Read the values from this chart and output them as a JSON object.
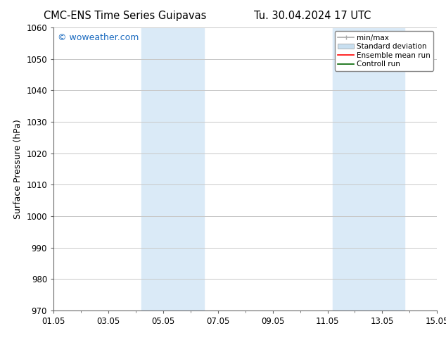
{
  "title_left": "CMC-ENS Time Series Guipavas",
  "title_right": "Tu. 30.04.2024 17 UTC",
  "ylabel": "Surface Pressure (hPa)",
  "ylim": [
    970,
    1060
  ],
  "yticks": [
    970,
    980,
    990,
    1000,
    1010,
    1020,
    1030,
    1040,
    1050,
    1060
  ],
  "xlim_start": 0.0,
  "xlim_end": 14.0,
  "xtick_labels": [
    "01.05",
    "03.05",
    "05.05",
    "07.05",
    "09.05",
    "11.05",
    "13.05",
    "15.05"
  ],
  "xtick_positions": [
    0,
    2,
    4,
    6,
    8,
    10,
    12,
    14
  ],
  "shaded_bands": [
    {
      "x_start": 3.0,
      "x_end": 5.0,
      "color": "#daeaf7"
    },
    {
      "x_start": 4.5,
      "x_end": 5.5,
      "color": "#c5dcf0"
    },
    {
      "x_start": 10.0,
      "x_end": 12.0,
      "color": "#daeaf7"
    },
    {
      "x_start": 11.5,
      "x_end": 12.5,
      "color": "#c5dcf0"
    }
  ],
  "background_color": "#ffffff",
  "plot_bg_color": "#ffffff",
  "grid_color": "#c8c8c8",
  "watermark_text": "© woweather.com",
  "watermark_color": "#1a6abf",
  "legend_entries": [
    {
      "label": "min/max",
      "color": "#aaaaaa",
      "lw": 1.2,
      "ls": "-"
    },
    {
      "label": "Standard deviation",
      "color": "#c8dff0",
      "lw": 8,
      "ls": "-"
    },
    {
      "label": "Ensemble mean run",
      "color": "#ff0000",
      "lw": 1.2,
      "ls": "-"
    },
    {
      "label": "Controll run",
      "color": "#006400",
      "lw": 1.2,
      "ls": "-"
    }
  ],
  "title_fontsize": 10.5,
  "axis_label_fontsize": 9,
  "tick_fontsize": 8.5,
  "legend_fontsize": 7.5,
  "watermark_fontsize": 9
}
